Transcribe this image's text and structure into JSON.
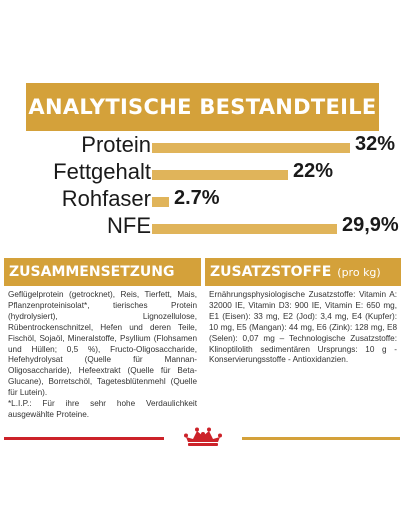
{
  "banner": {
    "title": "ANALYTISCHE BESTANDTEILE"
  },
  "analysis": {
    "items": [
      {
        "label": "Protein",
        "value": "32%",
        "percent": 32
      },
      {
        "label": "Fettgehalt",
        "value": "22%",
        "percent": 22
      },
      {
        "label": "Rohfaser",
        "value": "2.7%",
        "percent": 2.7
      },
      {
        "label": "NFE",
        "value": "29,9%",
        "percent": 29.9
      }
    ]
  },
  "composition": {
    "title": "ZUSAMMENSETZUNG",
    "text": "Geflügelprotein (getrocknet), Reis, Tierfett, Mais, Pflanzenproteinisolat*, tierisches Protein (hydrolysiert), Lignozellulose, Rübentrockenschnitzel, Hefen und deren Teile, Fischöl, Sojaöl, Mineralstoffe, Psyllium (Flohsamen und Hüllen; 0,5 %), Fructo-Oligosaccharide, Hefehydrolysat (Quelle für Mannan-Oligosaccharide), Hefeextrakt (Quelle für Beta-Glucane), Borretschöl, Tagetesblütenmehl (Quelle für Lutein).",
    "footnote": "*L.I.P.: Für ihre sehr hohe Verdaulichkeit ausgewählte Proteine."
  },
  "additives": {
    "title": "ZUSATZSTOFFE",
    "unit": "(pro kg)",
    "text": "Ernährungsphysiologische Zusatzstoffe: Vitamin A: 32000 IE, Vitamin D3: 900 IE, Vitamin E: 650 mg, E1 (Eisen): 33 mg, E2 (Jod): 3,4 mg, E4 (Kupfer): 10 mg, E5 (Mangan): 44 mg, E6 (Zink): 128 mg, E8 (Selen): 0,07 mg – Technologische Zusatzstoffe: Klinoptilolith sedimentären Ursprungs: 10 g - Konservierungsstoffe - Antioxidanzien."
  },
  "logo": {
    "name": "crown-logo-icon",
    "color": "#cc2229"
  },
  "colors": {
    "gold": "#d4a13a",
    "bar": "#e0b45a",
    "red": "#cc2229"
  }
}
